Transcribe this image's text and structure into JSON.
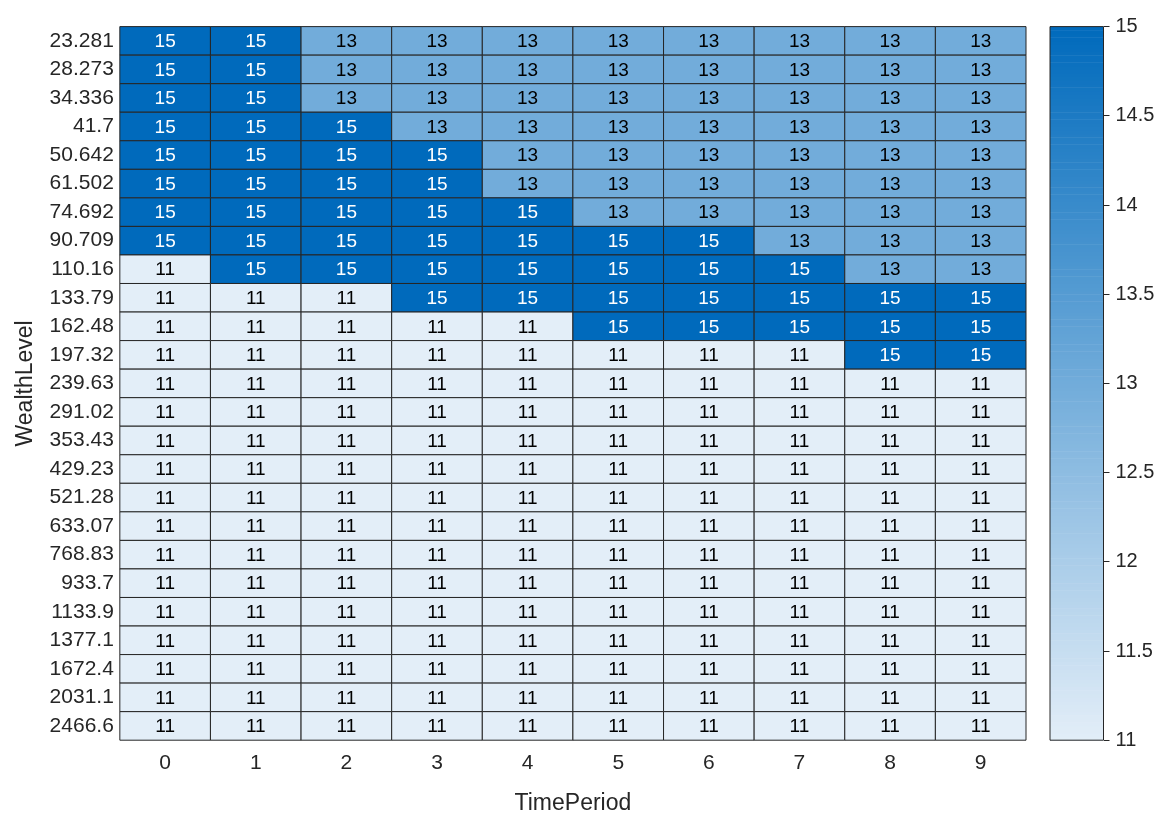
{
  "chart_data": {
    "type": "heatmap",
    "xlabel": "TimePeriod",
    "ylabel": "WealthLevel",
    "categories": [
      "0",
      "1",
      "2",
      "3",
      "4",
      "5",
      "6",
      "7",
      "8",
      "9"
    ],
    "y_categories": [
      "23.281",
      "28.273",
      "34.336",
      "41.7",
      "50.642",
      "61.502",
      "74.692",
      "90.709",
      "110.16",
      "133.79",
      "162.48",
      "197.32",
      "239.63",
      "291.02",
      "353.43",
      "429.23",
      "521.28",
      "633.07",
      "768.83",
      "933.7",
      "1133.9",
      "1377.1",
      "1672.4",
      "2031.1",
      "2466.6"
    ],
    "cells": [
      [
        15,
        15,
        13,
        13,
        13,
        13,
        13,
        13,
        13,
        13
      ],
      [
        15,
        15,
        13,
        13,
        13,
        13,
        13,
        13,
        13,
        13
      ],
      [
        15,
        15,
        13,
        13,
        13,
        13,
        13,
        13,
        13,
        13
      ],
      [
        15,
        15,
        15,
        13,
        13,
        13,
        13,
        13,
        13,
        13
      ],
      [
        15,
        15,
        15,
        15,
        13,
        13,
        13,
        13,
        13,
        13
      ],
      [
        15,
        15,
        15,
        15,
        13,
        13,
        13,
        13,
        13,
        13
      ],
      [
        15,
        15,
        15,
        15,
        15,
        13,
        13,
        13,
        13,
        13
      ],
      [
        15,
        15,
        15,
        15,
        15,
        15,
        15,
        13,
        13,
        13
      ],
      [
        11,
        15,
        15,
        15,
        15,
        15,
        15,
        15,
        13,
        13
      ],
      [
        11,
        11,
        11,
        15,
        15,
        15,
        15,
        15,
        15,
        15
      ],
      [
        11,
        11,
        11,
        11,
        11,
        15,
        15,
        15,
        15,
        15
      ],
      [
        11,
        11,
        11,
        11,
        11,
        11,
        11,
        11,
        15,
        15
      ],
      [
        11,
        11,
        11,
        11,
        11,
        11,
        11,
        11,
        11,
        11
      ],
      [
        11,
        11,
        11,
        11,
        11,
        11,
        11,
        11,
        11,
        11
      ],
      [
        11,
        11,
        11,
        11,
        11,
        11,
        11,
        11,
        11,
        11
      ],
      [
        11,
        11,
        11,
        11,
        11,
        11,
        11,
        11,
        11,
        11
      ],
      [
        11,
        11,
        11,
        11,
        11,
        11,
        11,
        11,
        11,
        11
      ],
      [
        11,
        11,
        11,
        11,
        11,
        11,
        11,
        11,
        11,
        11
      ],
      [
        11,
        11,
        11,
        11,
        11,
        11,
        11,
        11,
        11,
        11
      ],
      [
        11,
        11,
        11,
        11,
        11,
        11,
        11,
        11,
        11,
        11
      ],
      [
        11,
        11,
        11,
        11,
        11,
        11,
        11,
        11,
        11,
        11
      ],
      [
        11,
        11,
        11,
        11,
        11,
        11,
        11,
        11,
        11,
        11
      ],
      [
        11,
        11,
        11,
        11,
        11,
        11,
        11,
        11,
        11,
        11
      ],
      [
        11,
        11,
        11,
        11,
        11,
        11,
        11,
        11,
        11,
        11
      ],
      [
        11,
        11,
        11,
        11,
        11,
        11,
        11,
        11,
        11,
        11
      ]
    ],
    "clim": [
      11,
      15
    ],
    "cticks": [
      11,
      11.5,
      12,
      12.5,
      13,
      13.5,
      14,
      14.5,
      15
    ],
    "data_labels": true,
    "grid": false
  }
}
